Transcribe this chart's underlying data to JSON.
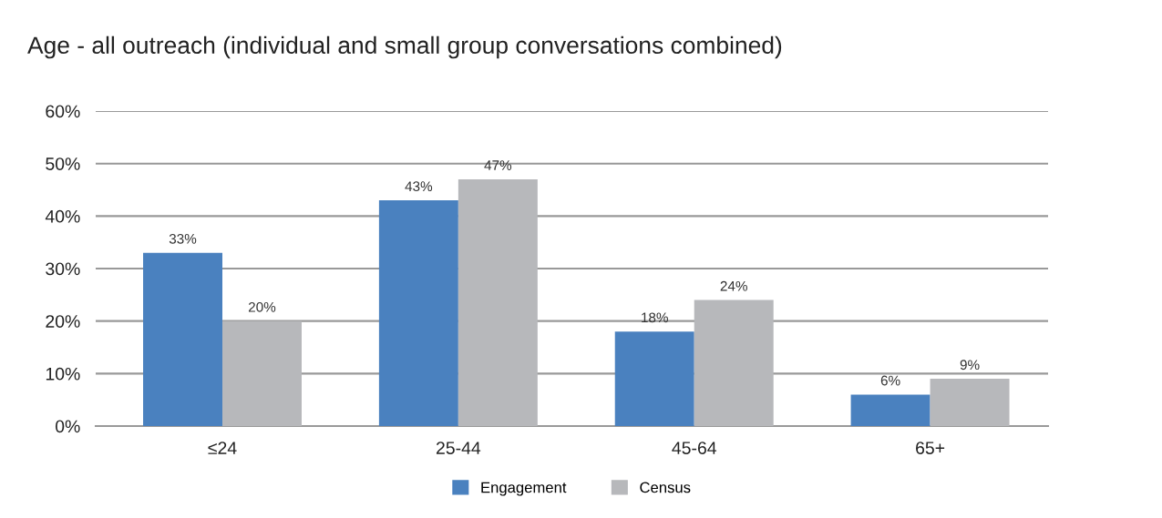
{
  "chart_data": {
    "type": "bar",
    "title": "Age - all outreach (individual and small group conversations combined)",
    "categories": [
      "≤24",
      "25-44",
      "45-64",
      "65+"
    ],
    "series": [
      {
        "name": "Engagement",
        "color": "#4a81bf",
        "values": [
          33,
          43,
          18,
          6
        ],
        "value_labels": [
          "33%",
          "43%",
          "18%",
          "6%"
        ]
      },
      {
        "name": "Census",
        "color": "#b7b8bb",
        "values": [
          20,
          47,
          24,
          9
        ],
        "value_labels": [
          "20%",
          "47%",
          "24%",
          "9%"
        ]
      }
    ],
    "ylim": [
      0,
      60
    ],
    "yticks": [
      {
        "value": 0,
        "label": "0%"
      },
      {
        "value": 10,
        "label": "10%"
      },
      {
        "value": 20,
        "label": "20%"
      },
      {
        "value": 30,
        "label": "30%"
      },
      {
        "value": 40,
        "label": "40%"
      },
      {
        "value": 50,
        "label": "50%"
      },
      {
        "value": 60,
        "label": "60%"
      }
    ],
    "grid": "y",
    "legend": "bottom"
  }
}
